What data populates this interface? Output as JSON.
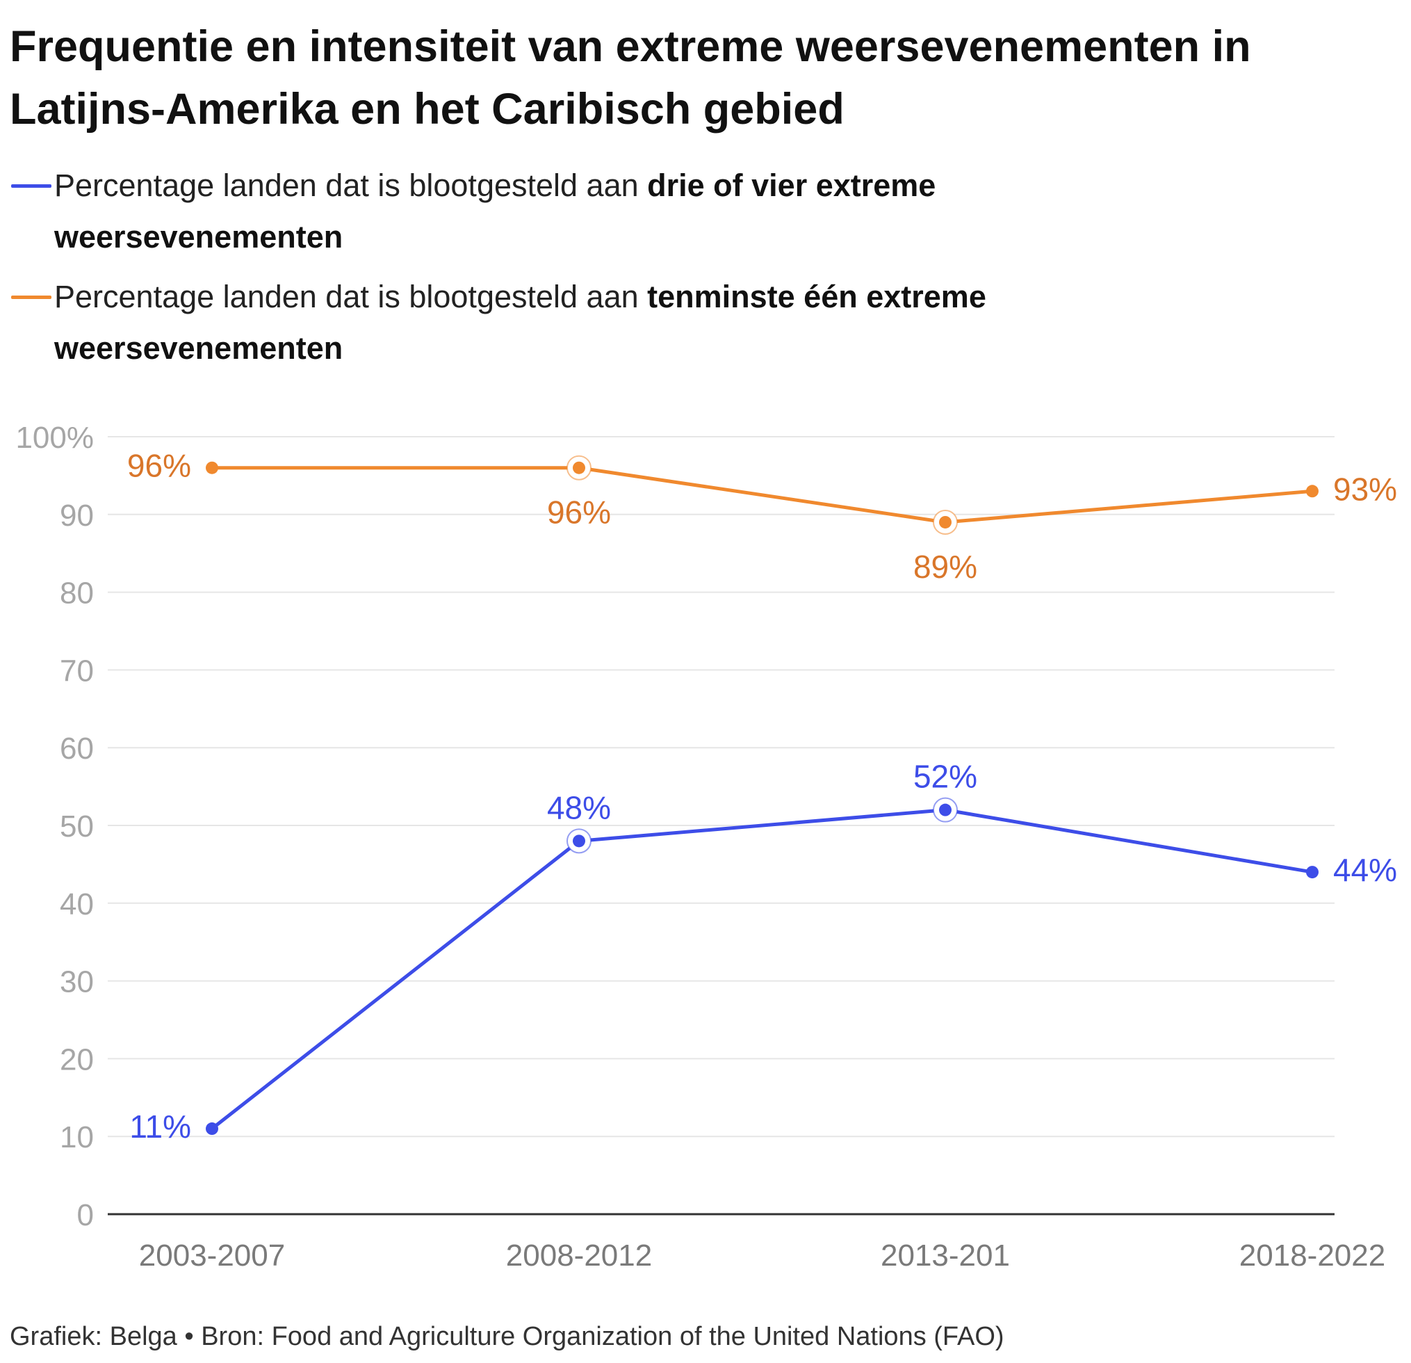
{
  "title": "Frequentie en intensiteit van extreme weersevenementen in Latijns-Amerika en het Caribisch gebied",
  "legend": [
    {
      "prefix": "Percentage landen dat is blootgesteld aan ",
      "bold": "drie of vier extreme weersevenementen",
      "color": "#3d4de8"
    },
    {
      "prefix": "Percentage landen dat is blootgesteld aan ",
      "bold": "tenminste één extreme weersevenementen",
      "color": "#f0892e"
    }
  ],
  "chart_data": {
    "type": "line",
    "title": "Frequentie en intensiteit van extreme weersevenementen in Latijns-Amerika en het Caribisch gebied",
    "xlabel": "",
    "ylabel": "",
    "categories": [
      "2003-2007",
      "2008-2012",
      "2013-201",
      "2018-2022"
    ],
    "ylim": [
      0,
      100
    ],
    "yticks": [
      0,
      10,
      20,
      30,
      40,
      50,
      60,
      70,
      80,
      90,
      100
    ],
    "ytick_labels": [
      "0",
      "10",
      "20",
      "30",
      "40",
      "50",
      "60",
      "70",
      "80",
      "90",
      "100%"
    ],
    "grid": true,
    "series": [
      {
        "name": "Percentage landen dat is blootgesteld aan tenminste één extreme weersevenementen",
        "key": "orange",
        "color": "#f0892e",
        "label_color": "#d9762a",
        "values": [
          96,
          96,
          89,
          93
        ],
        "labels": [
          "96%",
          "96%",
          "89%",
          "93%"
        ],
        "highlighted": [
          false,
          true,
          true,
          false
        ]
      },
      {
        "name": "Percentage landen dat is blootgesteld aan drie of vier extreme weersevenementen",
        "key": "blue",
        "color": "#3d4de8",
        "label_color": "#3d4de8",
        "values": [
          11,
          48,
          52,
          44
        ],
        "labels": [
          "11%",
          "48%",
          "52%",
          "44%"
        ],
        "highlighted": [
          false,
          true,
          true,
          false
        ]
      }
    ]
  },
  "footer": "Grafiek: Belga • Bron: Food and Agriculture Organization of the United Nations (FAO)"
}
